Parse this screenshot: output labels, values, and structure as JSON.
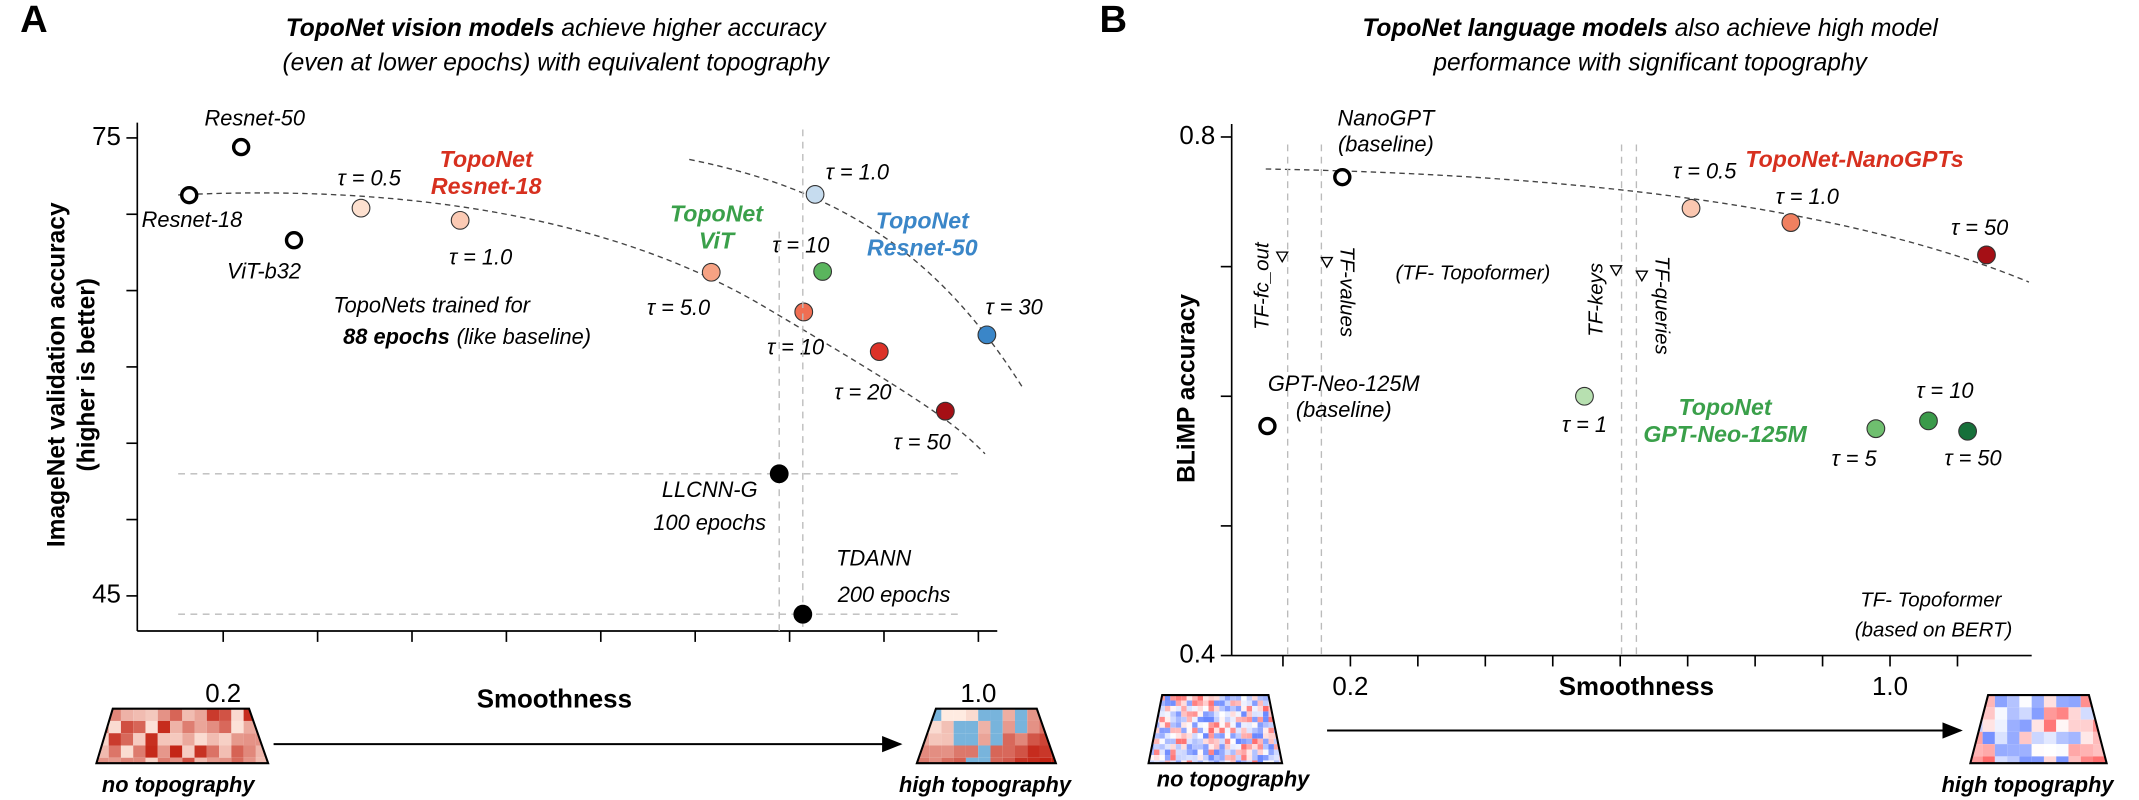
{
  "chart_data": [
    {
      "type": "scatter",
      "panel": "A",
      "title_emphasis": "TopoNet vision models",
      "title": [
        "achieve higher accuracy",
        "(even at lower epochs) with equivalent topography"
      ],
      "xlabel": "Smoothness",
      "ylabel": [
        "ImageNet validation accuracy",
        "(higher is better)"
      ],
      "xlim": [
        0.109,
        1.02
      ],
      "ylim": [
        42.7,
        76
      ],
      "xticks": [
        0.2,
        {
          "value": 1,
          "label": "1.0"
        }
      ],
      "xminor": [
        0.3,
        0.4,
        0.5,
        0.6,
        0.7,
        0.8,
        0.9
      ],
      "yticks": [
        75,
        45
      ],
      "yminor": [
        70,
        65,
        60,
        55,
        50
      ],
      "series": [
        {
          "marker": "open",
          "color": "#000000",
          "x": [
            0.219,
            0.164,
            0.275
          ],
          "y": [
            74.4,
            71.25,
            68.3
          ],
          "labels": [
            [
              "Resnet-50"
            ],
            [
              "Resnet-18"
            ],
            [
              "ViT-b32"
            ]
          ]
        },
        {
          "name": [
            "TopoNet",
            "Resnet-18"
          ],
          "color": "#d7301f",
          "x": [
            0.346,
            0.451,
            0.717,
            0.815,
            0.895,
            0.965
          ],
          "y": [
            70.4,
            69.6,
            66.2,
            63.6,
            61.0,
            57.1
          ],
          "colors": [
            "#fde0cf",
            "#fbcab4",
            "#f6a283",
            "#f06e52",
            "#dc3228",
            "#a50f15"
          ],
          "labels": [
            [
              "τ = 0.5"
            ],
            [
              "τ = 1.0"
            ],
            [
              "τ = 5.0"
            ],
            [
              "τ = 10"
            ],
            [
              "τ = 20"
            ],
            [
              "τ = 50"
            ]
          ]
        },
        {
          "name": [
            "TopoNet",
            "ViT"
          ],
          "color": "#3aa04a",
          "x": [
            0.835
          ],
          "y": [
            66.25
          ],
          "colors": [
            "#5ab55d"
          ],
          "labels": [
            [
              "τ = 10"
            ]
          ]
        },
        {
          "name": [
            "TopoNet",
            "Resnet-50"
          ],
          "color": "#3a86c8",
          "x": [
            0.827,
            1.009
          ],
          "y": [
            71.3,
            62.1
          ],
          "colors": [
            "#c6dcef",
            "#3a86c8"
          ],
          "labels": [
            [
              "τ = 1.0"
            ],
            [
              "τ = 30"
            ]
          ]
        },
        {
          "marker": "reference",
          "color": "#000000",
          "x": [
            0.789,
            0.814
          ],
          "y": [
            53.0,
            43.8
          ],
          "labels": [
            [
              "LLCNN-G",
              "100 epochs"
            ],
            [
              "TDANN",
              "200 epochs"
            ]
          ]
        }
      ],
      "annotation": [
        "TopoNets trained for",
        "88 epochs",
        "(like baseline)"
      ],
      "bottom_labels": [
        "no topography",
        "high topography"
      ]
    },
    {
      "type": "scatter",
      "panel": "B",
      "title_emphasis": "TopoNet language models",
      "title": [
        "also achieve high model",
        "performance with significant topography"
      ],
      "xlabel": "Smoothness",
      "ylabel": [
        "BLiMP accuracy"
      ],
      "xlim": [
        0.024,
        1.21
      ],
      "ylim": [
        0.4,
        0.81
      ],
      "xticks": [
        0.2,
        {
          "value": 1,
          "label": "1.0"
        }
      ],
      "xminor": [
        0.1,
        0.3,
        0.4,
        0.5,
        0.6,
        0.7,
        0.8,
        0.9,
        1.1
      ],
      "yticks": [
        0.8,
        0.4
      ],
      "yminor": [
        0.7,
        0.6,
        0.5
      ],
      "series": [
        {
          "marker": "open",
          "color": "#000000",
          "x": [
            0.188,
            0.077
          ],
          "y": [
            0.769,
            0.577
          ],
          "labels": [
            [
              "NanoGPT",
              "(baseline)"
            ],
            [
              "GPT-Neo-125M",
              "(baseline)"
            ]
          ]
        },
        {
          "name": [
            "TopoNet-NanoGPTs"
          ],
          "color": "#d7301f",
          "x": [
            0.705,
            0.853,
            1.143
          ],
          "y": [
            0.745,
            0.734,
            0.709
          ],
          "colors": [
            "#fbc7b0",
            "#f08060",
            "#a50f15"
          ],
          "labels": [
            [
              "τ = 0.5"
            ],
            [
              "τ = 1.0"
            ],
            [
              "τ = 50"
            ]
          ]
        },
        {
          "name": [
            "TopoNet",
            "GPT-Neo-125M"
          ],
          "color": "#3aa04a",
          "x": [
            0.547,
            0.979,
            1.057,
            1.115
          ],
          "y": [
            0.6,
            0.575,
            0.581,
            0.573
          ],
          "colors": [
            "#b7e0b0",
            "#6fbf6f",
            "#3a9a4a",
            "#16703a"
          ],
          "labels": [
            [
              "τ = 1"
            ],
            [
              "τ = 5"
            ],
            [
              "τ = 10"
            ],
            [
              "τ = 50"
            ]
          ]
        }
      ],
      "tf_markers": [
        {
          "label": "TF-fc_out",
          "x": 0.107
        },
        {
          "label": "TF-values",
          "x": 0.157
        },
        {
          "label": "TF-keys",
          "x": 0.602
        },
        {
          "label": "TF-queries",
          "x": 0.624
        }
      ],
      "annotation": [
        "(TF- Topoformer)"
      ],
      "note": [
        "TF- Topoformer",
        "(based on BERT)"
      ],
      "bottom_labels": [
        "no topography",
        "high topography"
      ]
    }
  ]
}
